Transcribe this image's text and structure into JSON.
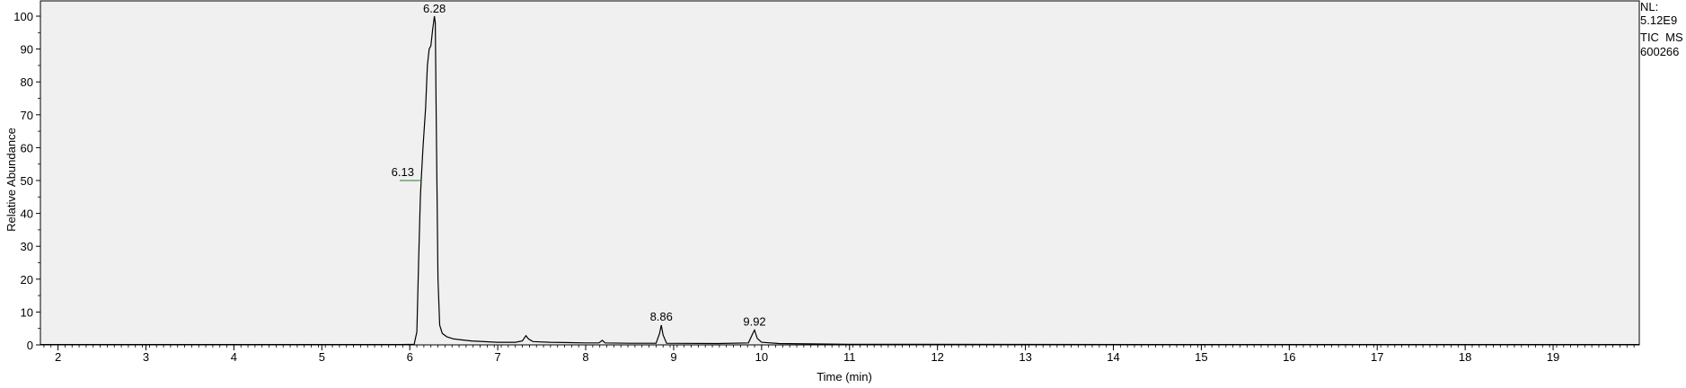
{
  "chart_data": {
    "type": "line",
    "title": "",
    "xlabel": "Time (min)",
    "ylabel": "Relative Abundance",
    "xlim": [
      1.8,
      19.98
    ],
    "ylim": [
      0,
      100
    ],
    "x_ticks": [
      2,
      3,
      4,
      5,
      6,
      7,
      8,
      9,
      10,
      11,
      12,
      13,
      14,
      15,
      16,
      17,
      18,
      19
    ],
    "y_ticks": [
      0,
      10,
      20,
      30,
      40,
      50,
      60,
      70,
      80,
      90,
      100
    ],
    "grid": false,
    "series": [
      {
        "x": [
          1.8,
          3.0,
          4.0,
          5.0,
          5.9,
          6.05,
          6.08,
          6.1,
          6.12,
          6.13,
          6.15,
          6.18,
          6.2,
          6.22,
          6.24,
          6.26,
          6.27,
          6.28,
          6.29,
          6.3,
          6.32,
          6.34,
          6.37,
          6.42,
          6.5,
          6.7,
          7.0,
          7.2,
          7.28,
          7.32,
          7.35,
          7.4,
          7.6,
          8.0,
          8.15,
          8.19,
          8.22,
          8.5,
          8.8,
          8.84,
          8.86,
          8.88,
          8.92,
          9.5,
          9.85,
          9.9,
          9.92,
          9.95,
          10.0,
          10.2,
          11.0,
          13.0,
          15.0,
          17.0,
          19.0,
          19.98
        ],
        "y": [
          0.1,
          0.1,
          0.1,
          0.1,
          0.1,
          0.2,
          4,
          25,
          45,
          50,
          60,
          72,
          85,
          90,
          91,
          96,
          98,
          100,
          98,
          70,
          20,
          6,
          3.5,
          2.5,
          1.8,
          1.2,
          0.8,
          0.8,
          1.2,
          2.8,
          1.8,
          1.0,
          0.8,
          0.6,
          0.6,
          1.4,
          0.6,
          0.5,
          0.5,
          3.5,
          6,
          3,
          0.5,
          0.4,
          0.6,
          3.5,
          4.5,
          2.0,
          0.8,
          0.4,
          0.2,
          0.15,
          0.1,
          0.1,
          0.1,
          0.1
        ]
      }
    ],
    "peak_labels": [
      {
        "text": "6.28",
        "x": 6.28,
        "y": 100
      },
      {
        "text": "6.13",
        "x": 6.13,
        "y": 50
      },
      {
        "text": "8.86",
        "x": 8.86,
        "y": 6
      },
      {
        "text": "9.92",
        "x": 9.92,
        "y": 4.5
      }
    ]
  },
  "info": {
    "nl_label": "NL:",
    "nl_value": "5.12E9",
    "trace_type": "TIC  MS",
    "sample_id": "600266"
  }
}
